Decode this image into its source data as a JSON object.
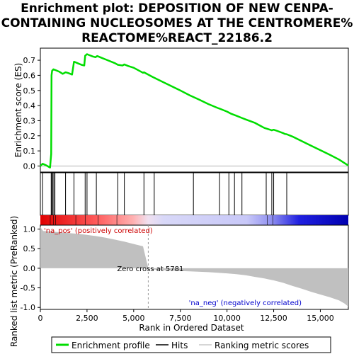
{
  "title_lines": [
    "Enrichment plot: DEPOSITION OF NEW CENPA-",
    "CONTAINING NUCLEOSOMES AT THE CENTROMERE%",
    "REACTOME%REACT_22186.2"
  ],
  "colors": {
    "es_line": "#00dd00",
    "hits": "#000000",
    "metric_fill": "#c0c0c0",
    "pos_label": "#cc0000",
    "neg_label": "#0000cc"
  },
  "chart_data": [
    {
      "type": "line",
      "name": "enrichment_profile",
      "ylabel": "Enrichment score (ES)",
      "xlim": [
        0,
        16500
      ],
      "ylim": [
        -0.04,
        0.78
      ],
      "yticks": [
        "0.0",
        "0.1",
        "0.2",
        "0.3",
        "0.4",
        "0.5",
        "0.6",
        "0.7"
      ],
      "x": [
        0,
        120,
        300,
        520,
        580,
        600,
        630,
        700,
        800,
        1000,
        1200,
        1350,
        1500,
        1700,
        1800,
        1850,
        2000,
        2200,
        2350,
        2400,
        2500,
        2600,
        2800,
        2950,
        3050,
        3200,
        3500,
        4000,
        4150,
        4400,
        4500,
        4700,
        5000,
        5500,
        5550,
        6000,
        6500,
        7000,
        7500,
        8000,
        8500,
        9000,
        9500,
        9600,
        10000,
        10200,
        10500,
        10800,
        11000,
        11500,
        11800,
        12000,
        12300,
        12400,
        12500,
        12700,
        13000,
        13100,
        13200,
        13500,
        14000,
        14500,
        15000,
        15500,
        16000,
        16500
      ],
      "y": [
        0.0,
        0.015,
        0.005,
        -0.01,
        0.08,
        0.6,
        0.63,
        0.64,
        0.635,
        0.625,
        0.61,
        0.62,
        0.615,
        0.605,
        0.69,
        0.688,
        0.68,
        0.67,
        0.665,
        0.73,
        0.74,
        0.735,
        0.725,
        0.72,
        0.728,
        0.72,
        0.705,
        0.68,
        0.67,
        0.665,
        0.672,
        0.662,
        0.65,
        0.617,
        0.62,
        0.59,
        0.56,
        0.53,
        0.5,
        0.468,
        0.44,
        0.41,
        0.384,
        0.38,
        0.36,
        0.347,
        0.333,
        0.318,
        0.308,
        0.285,
        0.265,
        0.252,
        0.24,
        0.236,
        0.24,
        0.232,
        0.218,
        0.212,
        0.21,
        0.195,
        0.165,
        0.135,
        0.105,
        0.075,
        0.043,
        0.003
      ]
    },
    {
      "type": "hits",
      "name": "hits",
      "x": [
        120,
        580,
        620,
        650,
        720,
        780,
        1350,
        1800,
        2400,
        2500,
        3000,
        4150,
        4500,
        5550,
        6100,
        8200,
        9600,
        10100,
        10400,
        10800,
        12100,
        12400,
        12500,
        13200
      ]
    },
    {
      "type": "area",
      "name": "ranking_metric_scores",
      "ylabel": "Ranked list metric (PreRanked)",
      "xlabel": "Rank in Ordered Dataset",
      "xlim": [
        0,
        16500
      ],
      "ylim": [
        -1.05,
        1.1
      ],
      "yticks": [
        "1.0",
        "0.5",
        "0.0",
        "-0.5",
        "-1.0"
      ],
      "xticks": [
        "0",
        "2,500",
        "5,000",
        "7,500",
        "10,000",
        "12,500",
        "15,000"
      ],
      "x": [
        0,
        150,
        500,
        1000,
        1500,
        2000,
        2500,
        3000,
        3500,
        4000,
        4500,
        5000,
        5500,
        5781,
        6000,
        7000,
        8000,
        9000,
        10000,
        10500,
        11000,
        11500,
        12000,
        12500,
        13000,
        13500,
        14000,
        14500,
        15000,
        15500,
        16000,
        16300,
        16500
      ],
      "y": [
        1.05,
        0.95,
        0.94,
        0.92,
        0.9,
        0.88,
        0.85,
        0.82,
        0.78,
        0.73,
        0.68,
        0.62,
        0.56,
        0.0,
        -0.03,
        -0.06,
        -0.08,
        -0.1,
        -0.13,
        -0.15,
        -0.18,
        -0.22,
        -0.26,
        -0.31,
        -0.37,
        -0.45,
        -0.52,
        -0.6,
        -0.67,
        -0.74,
        -0.82,
        -0.9,
        -0.98
      ],
      "annotations": {
        "pos": "'na_pos' (positively correlated)",
        "neg": "'na_neg' (negatively correlated)",
        "zero": "Zero cross at 5781"
      },
      "zero_cross": 5781
    }
  ],
  "legend": [
    {
      "label": "Enrichment profile",
      "kind": "es"
    },
    {
      "label": "Hits",
      "kind": "hits"
    },
    {
      "label": "Ranking metric scores",
      "kind": "metric"
    }
  ],
  "xlabel": "Rank in Ordered Dataset"
}
